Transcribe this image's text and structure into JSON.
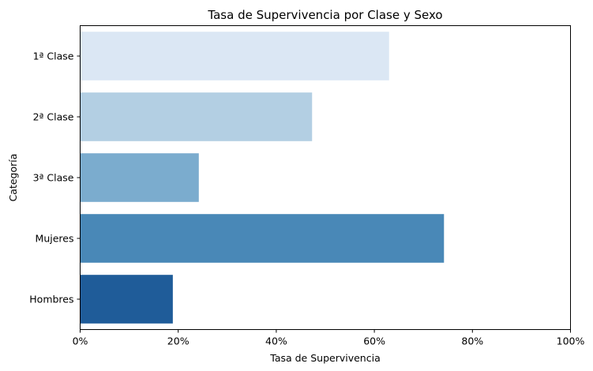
{
  "chart_data": {
    "type": "bar",
    "orientation": "horizontal",
    "title": "Tasa de Supervivencia por Clase y Sexo",
    "xlabel": "Tasa de Supervivencia",
    "ylabel": "Categoría",
    "categories": [
      "1ª Clase",
      "2ª Clase",
      "3ª Clase",
      "Mujeres",
      "Hombres"
    ],
    "values": [
      0.63,
      0.473,
      0.242,
      0.742,
      0.189
    ],
    "colors": [
      "#dbe7f4",
      "#b3cfe3",
      "#7bacce",
      "#4988b7",
      "#1f5c99"
    ],
    "xlim": [
      0,
      1
    ],
    "xticks": [
      0,
      0.2,
      0.4,
      0.6,
      0.8,
      1.0
    ],
    "xtick_labels": [
      "0%",
      "20%",
      "40%",
      "60%",
      "80%",
      "100%"
    ],
    "grid": false,
    "legend": "none"
  }
}
